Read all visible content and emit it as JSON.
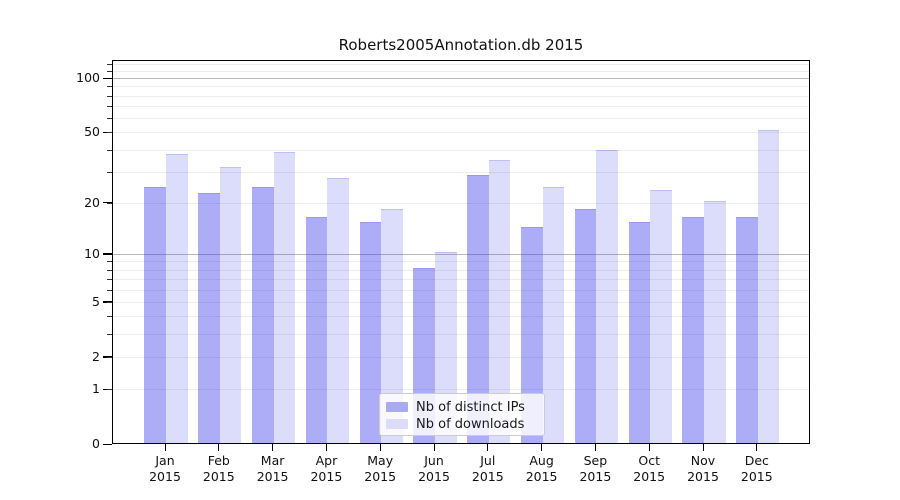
{
  "title": "Roberts2005Annotation.db 2015",
  "chart_data": {
    "type": "bar",
    "title": "Roberts2005Annotation.db 2015",
    "categories": [
      "Jan 2015",
      "Feb 2015",
      "Mar 2015",
      "Apr 2015",
      "May 2015",
      "Jun 2015",
      "Jul 2015",
      "Aug 2015",
      "Sep 2015",
      "Oct 2015",
      "Nov 2015",
      "Dec 2015"
    ],
    "month_labels": [
      "Jan",
      "Feb",
      "Mar",
      "Apr",
      "May",
      "Jun",
      "Jul",
      "Aug",
      "Sep",
      "Oct",
      "Nov",
      "Dec"
    ],
    "year_label": "2015",
    "series": [
      {
        "name": "Nb of distinct IPs",
        "color": "#a9a9f5",
        "fill_rgba": "rgba(60,60,235,0.42)",
        "values": [
          24,
          22,
          24,
          16,
          15,
          8,
          28,
          14,
          18,
          15,
          16,
          16
        ]
      },
      {
        "name": "Nb of downloads",
        "color": "#dcdcf8",
        "fill_rgba": "rgba(60,60,235,0.18)",
        "values": [
          37,
          31,
          38,
          27,
          18,
          10,
          34,
          24,
          39,
          23,
          20,
          50
        ]
      }
    ],
    "xlabel": "",
    "ylabel": "",
    "yscale": "log1p",
    "ylim": [
      0,
      126
    ],
    "y_ticks": [
      0,
      1,
      2,
      5,
      10,
      20,
      50,
      100
    ],
    "y_major_gridlines": [
      10,
      100
    ],
    "y_minor_gridlines": [
      1,
      2,
      3,
      4,
      5,
      6,
      7,
      8,
      9,
      20,
      30,
      40,
      50,
      60,
      70,
      80,
      90,
      110,
      120
    ],
    "grid": true,
    "legend_position": "lower center"
  },
  "legend": {
    "items": [
      {
        "label": "Nb of distinct IPs",
        "color": "#a9a9f5"
      },
      {
        "label": "Nb of downloads",
        "color": "#dcdcf8"
      }
    ]
  },
  "colors": {
    "bar_dark": "#a9a9f5",
    "bar_light": "#dcdcf8",
    "grid_minor": "#ededed",
    "grid_major": "#b8b8b8",
    "spine": "#000000",
    "background": "#ffffff"
  }
}
